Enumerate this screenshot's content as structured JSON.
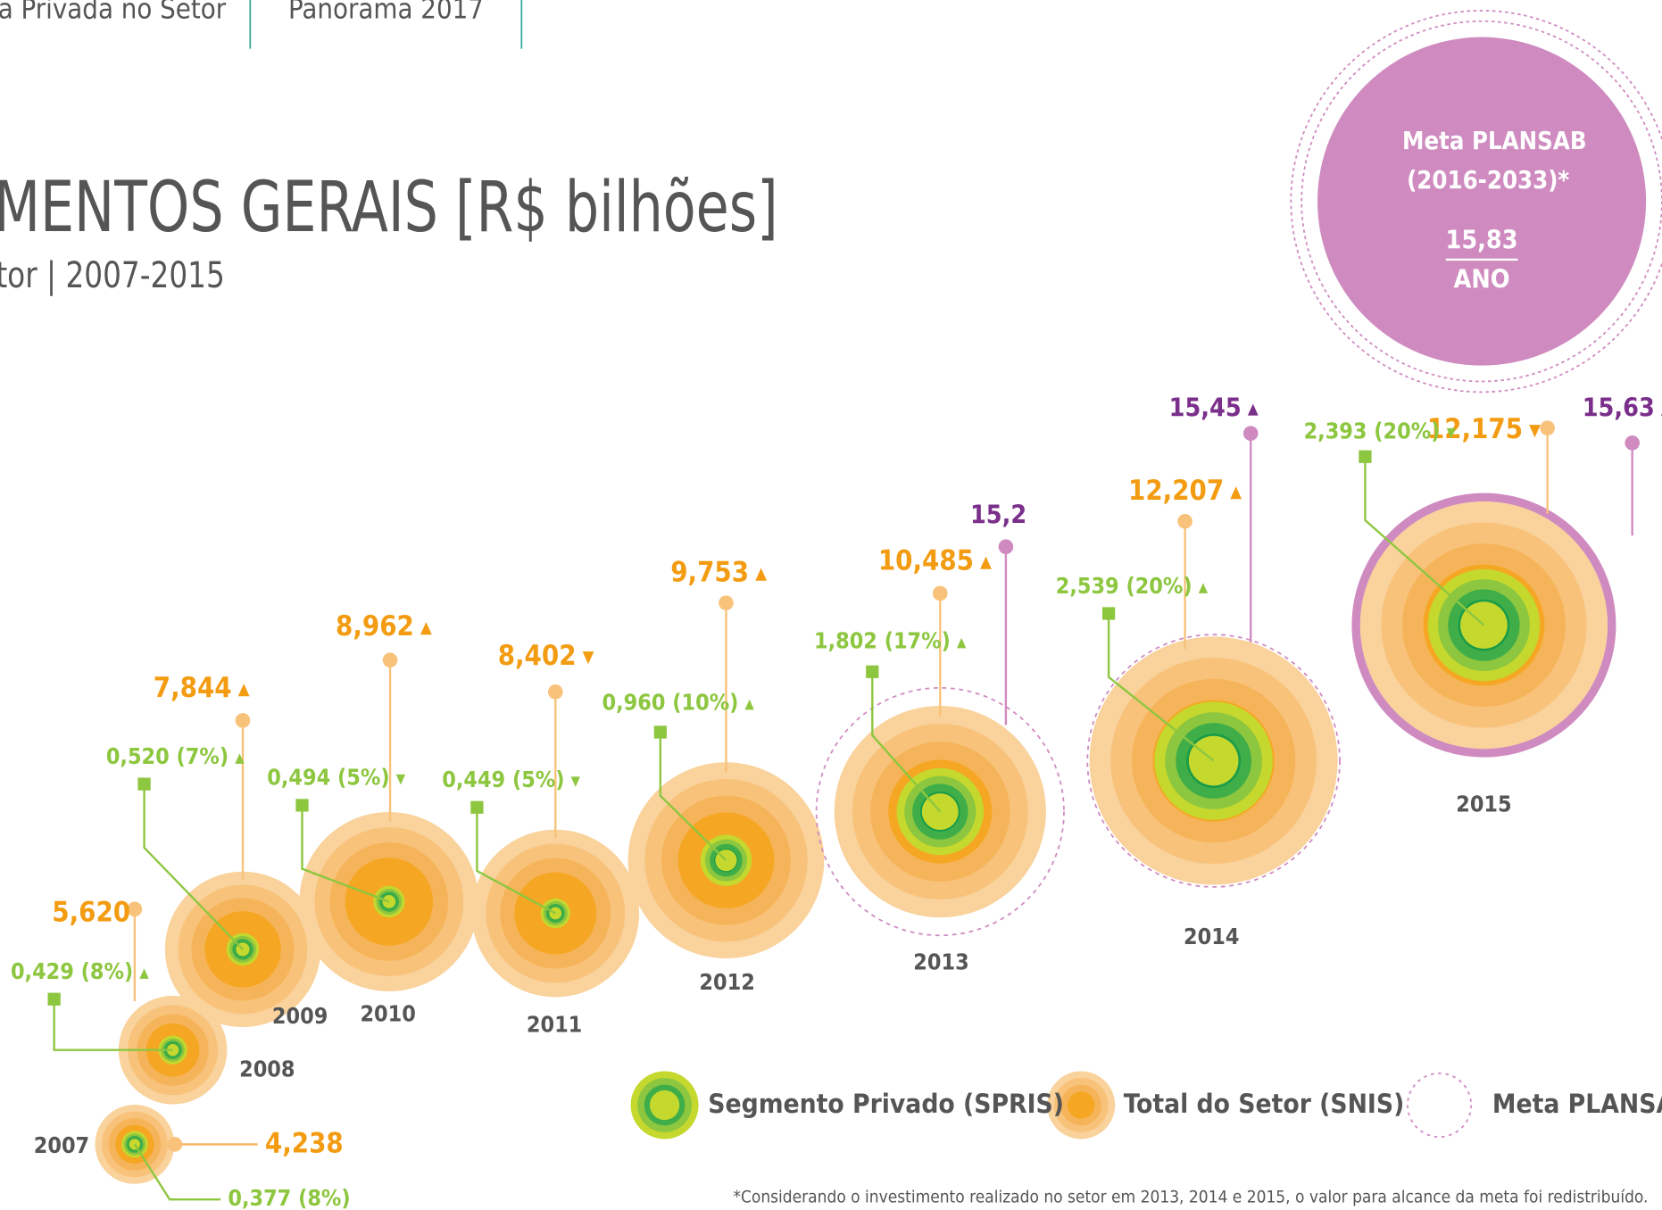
{
  "header": {
    "tabs": [
      "a Privada no Setor",
      "Panorama 2017"
    ]
  },
  "chart_data": {
    "type": "bubble",
    "title": "MENTOS GERAIS [R$ bilhões]",
    "subtitle": "tor | 2007-2015",
    "categories": [
      "2007",
      "2008",
      "2009",
      "2010",
      "2011",
      "2012",
      "2013",
      "2014",
      "2015"
    ],
    "series": [
      {
        "name": "Segmento Privado (SPRIS)",
        "color": "#8dc63f",
        "values": [
          0.377,
          0.429,
          0.52,
          0.494,
          0.449,
          0.96,
          1.802,
          2.539,
          2.393
        ],
        "value_labels": [
          "0,377 (8%)",
          "0,429 (8%)",
          "0,520 (7%)",
          "0,494 (5%)",
          "0,449 (5%)",
          "0,960 (10%)",
          "1,802 (17%)",
          "2,539 (20%)",
          "2,393 (20%)"
        ],
        "trends": [
          null,
          "▲",
          "▲",
          "▼",
          "▼",
          "▲",
          "▲",
          "▲",
          "▼"
        ]
      },
      {
        "name": "Total do Setor (SNIS)",
        "color": "#f5a623",
        "values": [
          4.238,
          5.62,
          7.844,
          8.962,
          8.402,
          9.753,
          10.485,
          12.207,
          12.175
        ],
        "value_labels": [
          "4,238",
          "5,620",
          "7,844",
          "8,962",
          "8,402",
          "9,753",
          "10,485",
          "12,207",
          "12,175"
        ],
        "trends": [
          null,
          null,
          "▲",
          "▲",
          "▼",
          "▲",
          "▲",
          "▲",
          "▼"
        ]
      },
      {
        "name": "Meta PLANSAB",
        "color": "#cf8bc0",
        "values": [
          null,
          null,
          null,
          null,
          null,
          null,
          15.2,
          15.45,
          15.63
        ],
        "value_labels": [
          null,
          null,
          null,
          null,
          null,
          null,
          "15,2",
          "15,45",
          "15,63"
        ],
        "trends": [
          null,
          null,
          null,
          null,
          null,
          null,
          null,
          "▲",
          "▲"
        ]
      }
    ],
    "annotation": {
      "title": "Meta PLANSAB (2016-2033)*",
      "value": 15.83,
      "value_label": "15,83",
      "unit": "ANO"
    },
    "footnote": "*Considerando o investimento realizado no setor em 2013, 2014 e 2015, o valor para alcance da meta foi redistribuído."
  }
}
